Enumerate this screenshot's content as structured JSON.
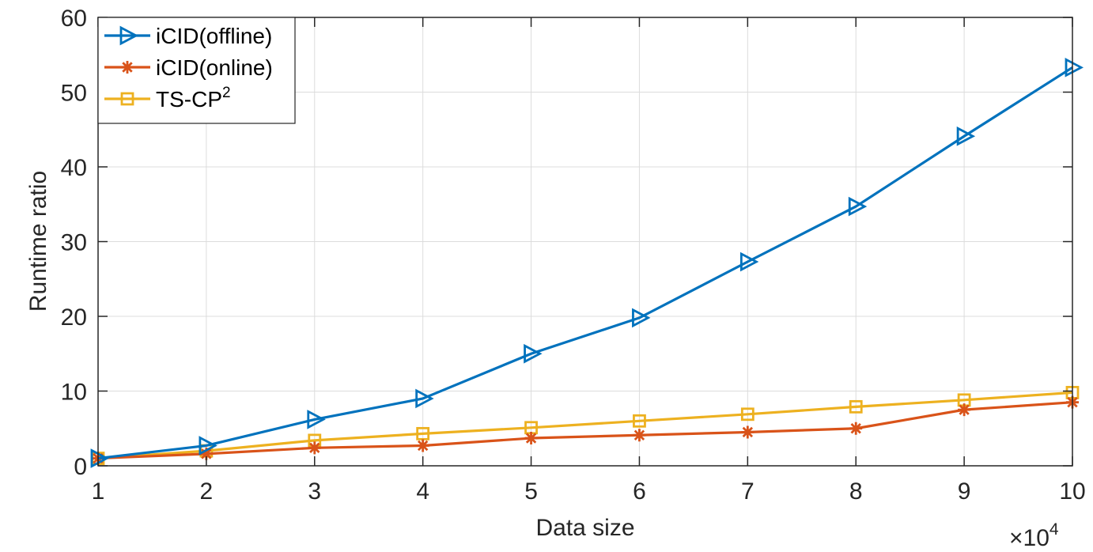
{
  "chart_data": {
    "type": "line",
    "x": [
      1,
      2,
      3,
      4,
      5,
      6,
      7,
      8,
      9,
      10
    ],
    "x_multiplier": "×10",
    "x_multiplier_exponent": "4",
    "xlabel": "Data size",
    "ylabel": "Runtime ratio",
    "xlim": [
      1,
      10
    ],
    "ylim": [
      0,
      60
    ],
    "xticks": [
      1,
      2,
      3,
      4,
      5,
      6,
      7,
      8,
      9,
      10
    ],
    "yticks": [
      0,
      10,
      20,
      30,
      40,
      50,
      60
    ],
    "grid": true,
    "legend_position": "top-left",
    "series": [
      {
        "name": "iCID(offline)",
        "name_base": "iCID(offline)",
        "name_sup": "",
        "color": "#0072BD",
        "marker": "triangle-right",
        "values": [
          1.0,
          2.7,
          6.2,
          9.0,
          15.0,
          19.8,
          27.3,
          34.7,
          44.1,
          53.3
        ]
      },
      {
        "name": "iCID(online)",
        "name_base": "iCID(online)",
        "name_sup": "",
        "color": "#D95319",
        "marker": "asterisk",
        "values": [
          1.0,
          1.6,
          2.4,
          2.7,
          3.7,
          4.1,
          4.5,
          5.0,
          7.5,
          8.5
        ]
      },
      {
        "name": "TS-CP2",
        "name_base": "TS-CP",
        "name_sup": "2",
        "color": "#EDB120",
        "marker": "square",
        "values": [
          1.0,
          2.0,
          3.4,
          4.3,
          5.1,
          6.0,
          6.9,
          7.9,
          8.8,
          9.8
        ]
      }
    ]
  }
}
